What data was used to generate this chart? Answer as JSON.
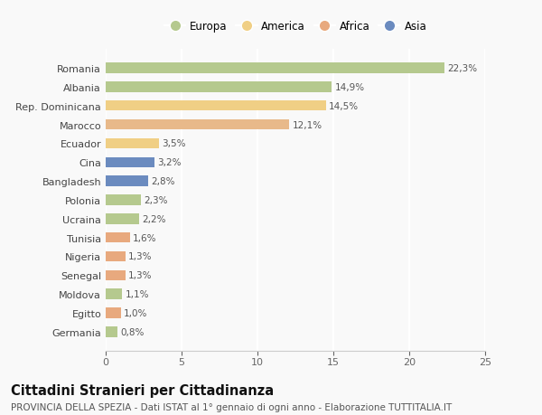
{
  "categories": [
    "Germania",
    "Egitto",
    "Moldova",
    "Senegal",
    "Nigeria",
    "Tunisia",
    "Ucraina",
    "Polonia",
    "Bangladesh",
    "Cina",
    "Ecuador",
    "Marocco",
    "Rep. Dominicana",
    "Albania",
    "Romania"
  ],
  "values": [
    0.8,
    1.0,
    1.1,
    1.3,
    1.3,
    1.6,
    2.2,
    2.3,
    2.8,
    3.2,
    3.5,
    12.1,
    14.5,
    14.9,
    22.3
  ],
  "labels": [
    "0,8%",
    "1,0%",
    "1,1%",
    "1,3%",
    "1,3%",
    "1,6%",
    "2,2%",
    "2,3%",
    "2,8%",
    "3,2%",
    "3,5%",
    "12,1%",
    "14,5%",
    "14,9%",
    "22,3%"
  ],
  "colors": [
    "#b5c98e",
    "#e8a97e",
    "#b5c98e",
    "#e8a97e",
    "#e8a97e",
    "#e8a97e",
    "#b5c98e",
    "#b5c98e",
    "#6b8bbf",
    "#6b8bbf",
    "#f0cf85",
    "#e8b98a",
    "#f0cf85",
    "#b5c98e",
    "#b5c98e"
  ],
  "legend_labels": [
    "Europa",
    "America",
    "Africa",
    "Asia"
  ],
  "legend_colors": [
    "#b5c98e",
    "#f0cf85",
    "#e8a97e",
    "#6b8bbf"
  ],
  "xlim": [
    0,
    25
  ],
  "xticks": [
    0,
    5,
    10,
    15,
    20,
    25
  ],
  "title": "Cittadini Stranieri per Cittadinanza",
  "subtitle": "PROVINCIA DELLA SPEZIA - Dati ISTAT al 1° gennaio di ogni anno - Elaborazione TUTTITALIA.IT",
  "background_color": "#f9f9f9",
  "bar_height": 0.55,
  "title_fontsize": 10.5,
  "subtitle_fontsize": 7.5,
  "label_fontsize": 7.5,
  "tick_fontsize": 8,
  "legend_fontsize": 8.5
}
